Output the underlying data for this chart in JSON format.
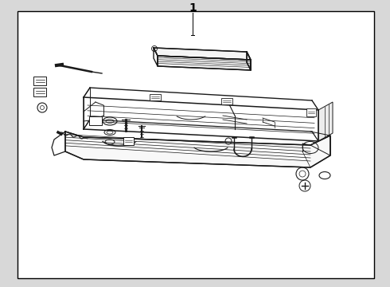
{
  "title": "1",
  "bg_color": "#ffffff",
  "inner_bg": "#e8e8e8",
  "border_color": "#000000",
  "line_color": "#1a1a1a",
  "fig_bg": "#d8d8d8"
}
